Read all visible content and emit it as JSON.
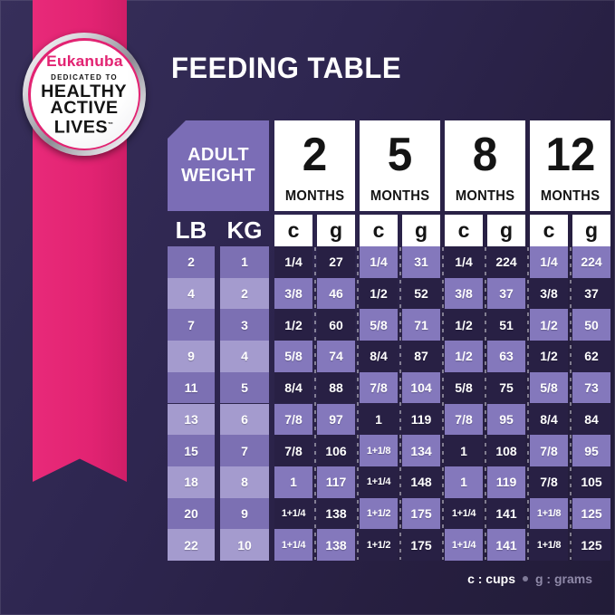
{
  "badge": {
    "brand": "Eukanuba",
    "tagline": "DEDICATED TO",
    "line1": "HEALTHY",
    "line2": "ACTIVE",
    "line3": "LIVES",
    "tm": "™"
  },
  "title": "FEEDING TABLE",
  "table": {
    "corner_header": {
      "line1": "ADULT",
      "line2": "WEIGHT"
    },
    "weight_headers": [
      "LB",
      "KG"
    ],
    "months": [
      {
        "number": "2",
        "label": "MONTHS"
      },
      {
        "number": "5",
        "label": "MONTHS"
      },
      {
        "number": "8",
        "label": "MONTHS"
      },
      {
        "number": "12",
        "label": "MONTHS"
      }
    ],
    "unit_headers": [
      "c",
      "g",
      "c",
      "g",
      "c",
      "g",
      "c",
      "g"
    ],
    "rows": [
      {
        "lb": "2",
        "kg": "1",
        "values": [
          "1/4",
          "27",
          "1/4",
          "31",
          "1/4",
          "224",
          "1/4",
          "224"
        ]
      },
      {
        "lb": "4",
        "kg": "2",
        "values": [
          "3/8",
          "46",
          "1/2",
          "52",
          "3/8",
          "37",
          "3/8",
          "37"
        ]
      },
      {
        "lb": "7",
        "kg": "3",
        "values": [
          "1/2",
          "60",
          "5/8",
          "71",
          "1/2",
          "51",
          "1/2",
          "50"
        ]
      },
      {
        "lb": "9",
        "kg": "4",
        "values": [
          "5/8",
          "74",
          "8/4",
          "87",
          "1/2",
          "63",
          "1/2",
          "62"
        ]
      },
      {
        "lb": "11",
        "kg": "5",
        "values": [
          "8/4",
          "88",
          "7/8",
          "104",
          "5/8",
          "75",
          "5/8",
          "73"
        ]
      },
      {
        "lb": "13",
        "kg": "6",
        "values": [
          "7/8",
          "97",
          "1",
          "119",
          "7/8",
          "95",
          "8/4",
          "84"
        ]
      },
      {
        "lb": "15",
        "kg": "7",
        "values": [
          "7/8",
          "106",
          "1+1/8",
          "134",
          "1",
          "108",
          "7/8",
          "95"
        ]
      },
      {
        "lb": "18",
        "kg": "8",
        "values": [
          "1",
          "117",
          "1+1/4",
          "148",
          "1",
          "119",
          "7/8",
          "105"
        ]
      },
      {
        "lb": "20",
        "kg": "9",
        "values": [
          "1+1/4",
          "138",
          "1+1/2",
          "175",
          "1+1/4",
          "141",
          "1+1/8",
          "125"
        ]
      },
      {
        "lb": "22",
        "kg": "10",
        "values": [
          "1+1/4",
          "138",
          "1+1/2",
          "175",
          "1+1/4",
          "141",
          "1+1/8",
          "125"
        ]
      }
    ]
  },
  "legend": {
    "cups": "c : cups",
    "separator": "•",
    "grams": "g : grams"
  },
  "colors": {
    "accent_pink": "#e22372",
    "background_dark": "#2a2247",
    "cell_dark": "#282044",
    "cell_light": "#8478bc",
    "weight_cell": "#7c70b3",
    "weight_cell_light": "#a49bce",
    "header_purple": "#7b6db6",
    "white": "#ffffff",
    "legend_gray": "#8f89a8"
  },
  "chart_data": {
    "type": "table",
    "title": "FEEDING TABLE",
    "column_groups": [
      "ADULT WEIGHT",
      "2 MONTHS",
      "5 MONTHS",
      "8 MONTHS",
      "12 MONTHS"
    ],
    "columns": [
      "LB",
      "KG",
      "2mo c",
      "2mo g",
      "5mo c",
      "5mo g",
      "8mo c",
      "8mo g",
      "12mo c",
      "12mo g"
    ],
    "rows": [
      [
        "2",
        "1",
        "1/4",
        "27",
        "1/4",
        "31",
        "1/4",
        "224",
        "1/4",
        "224"
      ],
      [
        "4",
        "2",
        "3/8",
        "46",
        "1/2",
        "52",
        "3/8",
        "37",
        "3/8",
        "37"
      ],
      [
        "7",
        "3",
        "1/2",
        "60",
        "5/8",
        "71",
        "1/2",
        "51",
        "1/2",
        "50"
      ],
      [
        "9",
        "4",
        "5/8",
        "74",
        "8/4",
        "87",
        "1/2",
        "63",
        "1/2",
        "62"
      ],
      [
        "11",
        "5",
        "8/4",
        "88",
        "7/8",
        "104",
        "5/8",
        "75",
        "5/8",
        "73"
      ],
      [
        "13",
        "6",
        "7/8",
        "97",
        "1",
        "119",
        "7/8",
        "95",
        "8/4",
        "84"
      ],
      [
        "15",
        "7",
        "7/8",
        "106",
        "1+1/8",
        "134",
        "1",
        "108",
        "7/8",
        "95"
      ],
      [
        "18",
        "8",
        "1",
        "117",
        "1+1/4",
        "148",
        "1",
        "119",
        "7/8",
        "105"
      ],
      [
        "20",
        "9",
        "1+1/4",
        "138",
        "1+1/2",
        "175",
        "1+1/4",
        "141",
        "1+1/8",
        "125"
      ],
      [
        "22",
        "10",
        "1+1/4",
        "138",
        "1+1/2",
        "175",
        "1+1/4",
        "141",
        "1+1/8",
        "125"
      ]
    ],
    "units_note": "c : cups • g : grams"
  }
}
